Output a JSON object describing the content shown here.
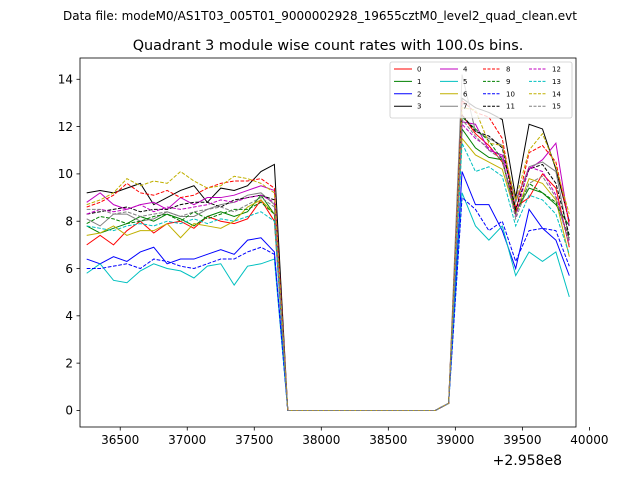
{
  "suptitle": "Data file: modeM0/AS1T03_005T01_9000002928_19655cztM0_level2_quad_clean.evt",
  "chart_data": {
    "type": "line",
    "title": "Quadrant 3 module wise count rates with 100.0s bins.",
    "xlabel": "",
    "ylabel": "",
    "x_offset_label": "+2.958e8",
    "x": [
      36250,
      36350,
      36450,
      36550,
      36650,
      36750,
      36850,
      36950,
      37050,
      37150,
      37250,
      37350,
      37450,
      37550,
      37650,
      37750,
      37850,
      37950,
      38050,
      38150,
      38250,
      38350,
      38450,
      38550,
      38650,
      38750,
      38850,
      38950,
      39050,
      39150,
      39250,
      39350,
      39450,
      39550,
      39650,
      39750,
      39850
    ],
    "xlim": [
      36200,
      39900
    ],
    "ylim": [
      -0.7,
      14.9
    ],
    "xticks": [
      36500,
      37000,
      37500,
      38000,
      38500,
      39000,
      39500,
      40000
    ],
    "xtick_labels": [
      "36500",
      "37000",
      "37500",
      "38000",
      "38500",
      "39000",
      "39500",
      "40000"
    ],
    "yticks": [
      0,
      2,
      4,
      6,
      8,
      10,
      12,
      14
    ],
    "ytick_labels": [
      "0",
      "2",
      "4",
      "6",
      "8",
      "10",
      "12",
      "14"
    ],
    "grid": false,
    "legend_position": "top-right",
    "series": [
      {
        "name": "0",
        "color": "#ff0000",
        "dash": "solid",
        "values": [
          7.0,
          7.4,
          7.0,
          7.6,
          8.0,
          7.5,
          7.9,
          8.0,
          7.7,
          8.2,
          8.0,
          7.9,
          8.1,
          8.9,
          8.0,
          0.0,
          0.0,
          0.0,
          0.0,
          0.0,
          0.0,
          0.0,
          0.0,
          0.0,
          0.0,
          0.0,
          0.0,
          0.3,
          12.5,
          11.7,
          11.2,
          10.5,
          8.6,
          9.0,
          10.0,
          9.4,
          6.9
        ]
      },
      {
        "name": "1",
        "color": "#008000",
        "dash": "solid",
        "values": [
          7.8,
          7.5,
          7.7,
          7.9,
          8.2,
          8.0,
          8.3,
          8.1,
          7.8,
          8.2,
          8.4,
          8.2,
          8.4,
          9.1,
          8.3,
          0.0,
          0.0,
          0.0,
          0.0,
          0.0,
          0.0,
          0.0,
          0.0,
          0.0,
          0.0,
          0.0,
          0.0,
          0.3,
          11.9,
          11.1,
          10.7,
          10.6,
          8.4,
          9.4,
          9.2,
          8.7,
          7.8
        ]
      },
      {
        "name": "2",
        "color": "#0000ff",
        "dash": "solid",
        "values": [
          6.4,
          6.2,
          6.5,
          6.3,
          6.7,
          6.9,
          6.2,
          6.4,
          6.4,
          6.6,
          6.8,
          6.6,
          7.2,
          7.3,
          6.7,
          0.0,
          0.0,
          0.0,
          0.0,
          0.0,
          0.0,
          0.0,
          0.0,
          0.0,
          0.0,
          0.0,
          0.0,
          0.3,
          10.1,
          8.7,
          8.7,
          7.6,
          6.0,
          8.5,
          7.7,
          7.2,
          5.7
        ]
      },
      {
        "name": "3",
        "color": "#000000",
        "dash": "solid",
        "values": [
          9.2,
          9.3,
          9.2,
          9.4,
          9.6,
          8.7,
          9.0,
          9.3,
          9.5,
          8.8,
          9.4,
          9.3,
          9.5,
          10.1,
          10.4,
          0.0,
          0.0,
          0.0,
          0.0,
          0.0,
          0.0,
          0.0,
          0.0,
          0.0,
          0.0,
          0.0,
          0.0,
          0.3,
          13.2,
          12.8,
          12.6,
          12.3,
          9.0,
          12.1,
          11.9,
          10.2,
          8.0
        ]
      },
      {
        "name": "4",
        "color": "#c000c0",
        "dash": "solid",
        "values": [
          8.8,
          9.2,
          8.7,
          8.5,
          8.7,
          8.8,
          8.5,
          9.0,
          8.7,
          9.0,
          9.0,
          9.1,
          9.3,
          9.5,
          9.3,
          0.0,
          0.0,
          0.0,
          0.0,
          0.0,
          0.0,
          0.0,
          0.0,
          0.0,
          0.0,
          0.0,
          0.0,
          0.3,
          12.2,
          12.1,
          11.0,
          10.8,
          8.9,
          10.2,
          10.6,
          11.3,
          7.8
        ]
      },
      {
        "name": "5",
        "color": "#00c0c0",
        "dash": "solid",
        "values": [
          5.8,
          6.2,
          5.5,
          5.4,
          5.9,
          6.2,
          6.0,
          5.9,
          5.6,
          6.1,
          6.2,
          5.3,
          6.1,
          6.2,
          6.4,
          0.0,
          0.0,
          0.0,
          0.0,
          0.0,
          0.0,
          0.0,
          0.0,
          0.0,
          0.0,
          0.0,
          0.0,
          0.3,
          9.2,
          7.8,
          7.2,
          7.8,
          5.7,
          6.7,
          6.3,
          6.7,
          4.8
        ]
      },
      {
        "name": "6",
        "color": "#c0b000",
        "dash": "solid",
        "values": [
          7.4,
          7.5,
          7.8,
          7.4,
          7.6,
          7.6,
          7.9,
          7.3,
          7.9,
          7.8,
          7.7,
          8.0,
          8.6,
          8.9,
          8.3,
          0.0,
          0.0,
          0.0,
          0.0,
          0.0,
          0.0,
          0.0,
          0.0,
          0.0,
          0.0,
          0.0,
          0.0,
          0.3,
          11.5,
          10.8,
          10.5,
          10.2,
          8.3,
          9.8,
          9.6,
          8.9,
          6.5
        ]
      },
      {
        "name": "7",
        "color": "#808080",
        "dash": "solid",
        "values": [
          8.1,
          7.8,
          8.3,
          8.3,
          8.0,
          8.1,
          8.4,
          8.2,
          8.2,
          8.5,
          8.7,
          8.8,
          9.1,
          9.2,
          8.7,
          0.0,
          0.0,
          0.0,
          0.0,
          0.0,
          0.0,
          0.0,
          0.0,
          0.0,
          0.0,
          0.0,
          0.0,
          0.3,
          14.2,
          11.8,
          11.5,
          11.2,
          8.8,
          10.3,
          10.5,
          10.1,
          7.2
        ]
      },
      {
        "name": "8",
        "color": "#ff0000",
        "dash": "dashed",
        "values": [
          8.6,
          8.8,
          9.1,
          9.6,
          9.2,
          9.1,
          9.3,
          9.0,
          9.1,
          9.4,
          9.6,
          9.7,
          9.7,
          9.8,
          9.4,
          0.0,
          0.0,
          0.0,
          0.0,
          0.0,
          0.0,
          0.0,
          0.0,
          0.0,
          0.0,
          0.0,
          0.0,
          0.3,
          13.1,
          12.6,
          12.4,
          11.5,
          8.4,
          10.9,
          11.2,
          10.5,
          7.9
        ]
      },
      {
        "name": "9",
        "color": "#008000",
        "dash": "dashed",
        "values": [
          7.9,
          8.2,
          8.1,
          7.9,
          8.0,
          8.2,
          8.3,
          8.0,
          8.4,
          8.1,
          8.3,
          8.5,
          8.5,
          8.8,
          8.3,
          0.0,
          0.0,
          0.0,
          0.0,
          0.0,
          0.0,
          0.0,
          0.0,
          0.0,
          0.0,
          0.0,
          0.0,
          0.3,
          12.4,
          11.9,
          11.4,
          10.6,
          8.3,
          9.6,
          9.2,
          8.8,
          7.3
        ]
      },
      {
        "name": "10",
        "color": "#0000ff",
        "dash": "dashed",
        "values": [
          6.0,
          6.0,
          6.1,
          6.2,
          6.0,
          6.4,
          6.3,
          6.1,
          6.0,
          6.2,
          6.4,
          6.4,
          6.7,
          6.9,
          6.6,
          0.0,
          0.0,
          0.0,
          0.0,
          0.0,
          0.0,
          0.0,
          0.0,
          0.0,
          0.0,
          0.0,
          0.0,
          0.3,
          9.0,
          8.5,
          7.6,
          8.0,
          6.3,
          7.6,
          7.7,
          7.6,
          6.1
        ]
      },
      {
        "name": "11",
        "color": "#000000",
        "dash": "dashed",
        "values": [
          8.3,
          8.4,
          8.5,
          8.6,
          8.4,
          8.5,
          8.5,
          8.7,
          8.8,
          8.8,
          8.6,
          8.9,
          9.0,
          9.1,
          8.9,
          0.0,
          0.0,
          0.0,
          0.0,
          0.0,
          0.0,
          0.0,
          0.0,
          0.0,
          0.0,
          0.0,
          0.0,
          0.3,
          12.5,
          11.8,
          11.6,
          11.1,
          8.5,
          10.2,
          10.4,
          9.6,
          7.4
        ]
      },
      {
        "name": "12",
        "color": "#c000c0",
        "dash": "dashed",
        "values": [
          8.3,
          8.5,
          8.4,
          8.5,
          8.7,
          8.4,
          8.6,
          8.5,
          8.6,
          8.7,
          8.9,
          8.8,
          9.0,
          9.1,
          8.8,
          0.0,
          0.0,
          0.0,
          0.0,
          0.0,
          0.0,
          0.0,
          0.0,
          0.0,
          0.0,
          0.0,
          0.0,
          0.3,
          12.1,
          11.5,
          11.1,
          10.7,
          8.2,
          10.3,
          10.1,
          9.1,
          7.1
        ]
      },
      {
        "name": "13",
        "color": "#00c0c0",
        "dash": "dashed",
        "values": [
          7.8,
          7.7,
          7.6,
          7.8,
          7.9,
          7.8,
          8.0,
          7.9,
          8.1,
          7.9,
          8.1,
          8.0,
          8.2,
          8.4,
          8.0,
          0.0,
          0.0,
          0.0,
          0.0,
          0.0,
          0.0,
          0.0,
          0.0,
          0.0,
          0.0,
          0.0,
          0.0,
          0.3,
          11.3,
          10.1,
          10.3,
          9.9,
          7.8,
          9.1,
          8.9,
          8.3,
          6.6
        ]
      },
      {
        "name": "14",
        "color": "#c0b000",
        "dash": "dashed",
        "values": [
          8.7,
          8.9,
          9.2,
          9.8,
          9.5,
          9.7,
          9.6,
          10.1,
          9.7,
          9.4,
          9.5,
          9.9,
          9.8,
          9.6,
          9.2,
          0.0,
          0.0,
          0.0,
          0.0,
          0.0,
          0.0,
          0.0,
          0.0,
          0.0,
          0.0,
          0.0,
          0.0,
          0.3,
          12.8,
          12.7,
          11.3,
          11.2,
          8.9,
          11.0,
          11.7,
          10.3,
          8.3
        ]
      },
      {
        "name": "15",
        "color": "#808080",
        "dash": "dashed",
        "values": [
          8.5,
          8.5,
          8.3,
          8.4,
          8.2,
          8.3,
          8.4,
          8.2,
          8.4,
          8.5,
          8.6,
          8.4,
          8.7,
          9.0,
          8.6,
          0.0,
          0.0,
          0.0,
          0.0,
          0.0,
          0.0,
          0.0,
          0.0,
          0.0,
          0.0,
          0.0,
          0.0,
          0.3,
          12.3,
          11.6,
          11.0,
          10.6,
          8.1,
          9.6,
          9.9,
          9.0,
          7.0
        ]
      }
    ]
  }
}
